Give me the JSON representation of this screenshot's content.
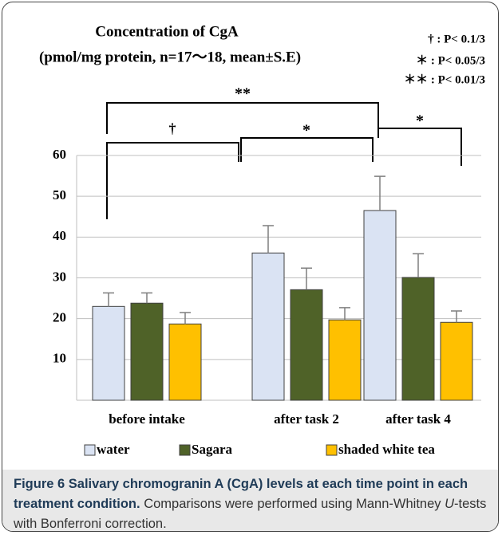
{
  "chart_data": {
    "type": "bar",
    "title": "Concentration of CgA",
    "subtitle": "(pmol/mg protein, n=17～18, mean±S.E)",
    "notes": [
      "† : P< 0.1/3",
      "＊ : P< 0.05/3",
      "＊＊ : P< 0.01/3"
    ],
    "brackets": [
      "**",
      "†",
      "*",
      "*"
    ],
    "categories": [
      "before intake",
      "after task 2",
      "after task 4"
    ],
    "series": [
      {
        "name": "water",
        "color": "#dae3f3",
        "values": [
          23.0,
          36.1,
          46.5
        ],
        "errors": [
          3.3,
          6.7,
          8.4
        ]
      },
      {
        "name": "Sagara",
        "color": "#4f6228",
        "values": [
          23.8,
          27.1,
          30.1
        ],
        "errors": [
          2.5,
          5.3,
          5.8
        ]
      },
      {
        "name": "shaded white tea",
        "color": "#ffc000",
        "values": [
          18.7,
          19.7,
          19.1
        ],
        "errors": [
          2.8,
          3.0,
          2.8
        ]
      }
    ],
    "ylim": [
      0,
      60
    ],
    "yticks": [
      10,
      20,
      30,
      40,
      50,
      60
    ],
    "grid": true
  },
  "caption": {
    "label": "Figure 6",
    "title": "Salivary chromogranin A (CgA) levels at each time point in each treatment condition.",
    "body": [
      "Comparisons were performed using Mann-Whitney ",
      "U",
      "-tests with Bonferroni correction."
    ]
  }
}
